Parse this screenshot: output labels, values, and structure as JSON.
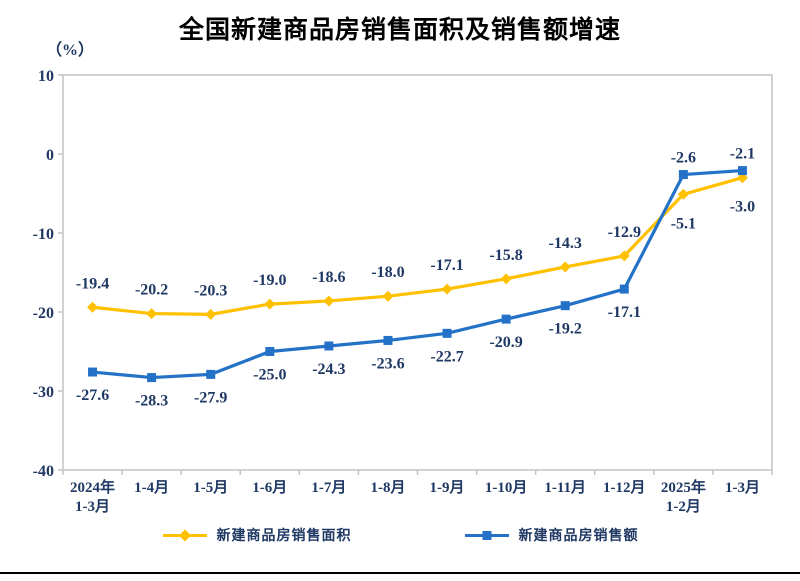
{
  "chart_data": {
    "type": "line",
    "title": "全国新建商品房销售面积及销售额增速",
    "unit_label": "（%）",
    "categories": [
      [
        "2024年",
        "1-3月"
      ],
      [
        "1-4月"
      ],
      [
        "1-5月"
      ],
      [
        "1-6月"
      ],
      [
        "1-7月"
      ],
      [
        "1-8月"
      ],
      [
        "1-9月"
      ],
      [
        "1-10月"
      ],
      [
        "1-11月"
      ],
      [
        "1-12月"
      ],
      [
        "2025年",
        "1-2月"
      ],
      [
        "1-3月"
      ]
    ],
    "series": [
      {
        "name": "新建商品房销售面积",
        "marker": "diamond",
        "color": "#FFC000",
        "values": [
          -19.4,
          -20.2,
          -20.3,
          -19.0,
          -18.6,
          -18.0,
          -17.1,
          -15.8,
          -14.3,
          -12.9,
          -5.1,
          -3.0
        ]
      },
      {
        "name": "新建商品房销售额",
        "marker": "square",
        "color": "#2472C8",
        "values": [
          -27.6,
          -28.3,
          -27.9,
          -25.0,
          -24.3,
          -23.6,
          -22.7,
          -20.9,
          -19.2,
          -17.1,
          -2.6,
          -2.1
        ]
      }
    ],
    "ylim": [
      -40,
      10
    ],
    "yticks": [
      10,
      0,
      -10,
      -20,
      -30,
      -40
    ],
    "grid": false,
    "legend_position": "bottom",
    "text_color": "#1F3864",
    "axis_color": "#C3C3C3"
  }
}
